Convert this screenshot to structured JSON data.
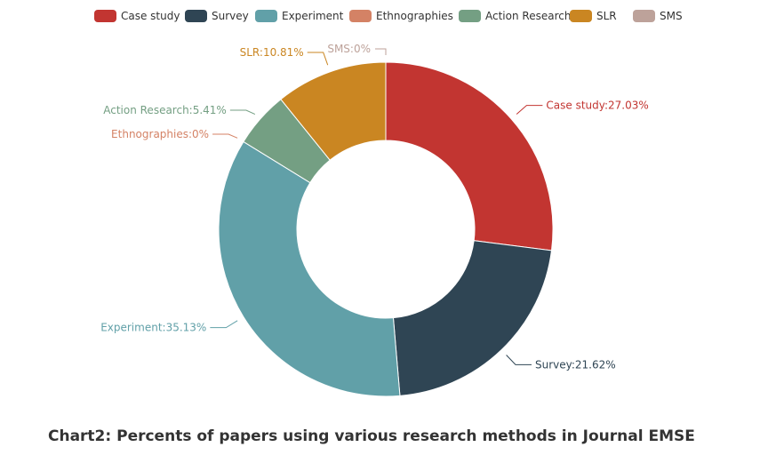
{
  "chart_data": {
    "type": "pie",
    "variant": "donut",
    "legend_position": "top",
    "label_format": "{name}:{value}%",
    "slices": [
      {
        "name": "Case study",
        "value": 27.03,
        "color": "#c23531"
      },
      {
        "name": "Survey",
        "value": 21.62,
        "color": "#2f4554"
      },
      {
        "name": "Experiment",
        "value": 35.13,
        "color": "#61a0a8"
      },
      {
        "name": "Ethnographies",
        "value": 0,
        "color": "#d48265"
      },
      {
        "name": "Action Research",
        "value": 5.41,
        "color": "#749f83"
      },
      {
        "name": "SLR",
        "value": 10.81,
        "color": "#ca8622"
      },
      {
        "name": "SMS",
        "value": 0,
        "color": "#bda29a"
      }
    ]
  },
  "caption": "Chart2: Percents of papers using various research methods in Journal EMSE"
}
